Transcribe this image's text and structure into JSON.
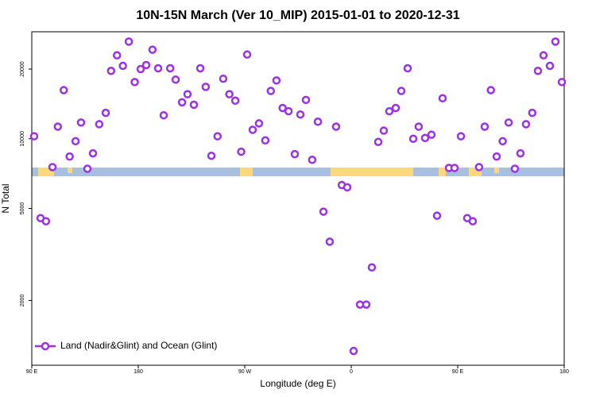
{
  "chart_data": {
    "type": "scatter",
    "title": "10N-15N March (Ver 10_MIP)   2015-01-01 to 2020-12-31",
    "x_label": "Longitude (deg E)",
    "y_label": "N Total",
    "y_log": true,
    "color": "#9b30e6",
    "legend_position": "lower left",
    "xlim": [
      90,
      540
    ],
    "ylim": [
      1050,
      29000
    ],
    "xticks": [
      {
        "value": 90,
        "label": "90 E"
      },
      {
        "value": 180,
        "label": "180"
      },
      {
        "value": 270,
        "label": "90 W"
      },
      {
        "value": 360,
        "label": "0"
      },
      {
        "value": 450,
        "label": "90 E"
      },
      {
        "value": 540,
        "label": "180"
      }
    ],
    "yticks": [
      2000,
      5000,
      10000,
      20000
    ],
    "series": [
      {
        "name": "Land (Nadir&Glint) and Ocean (Glint)",
        "color": "#9b30e6",
        "x": [
          92,
          97.4,
          102,
          107.5,
          112,
          117,
          122,
          127,
          131.6,
          137,
          141.7,
          147,
          152.5,
          157,
          162,
          167,
          172,
          177,
          182,
          186.7,
          192,
          196.8,
          201.5,
          207,
          211.6,
          217,
          221.6,
          227,
          232.4,
          237,
          241.8,
          247,
          251.8,
          257,
          262,
          267,
          272,
          276.7,
          282,
          287.4,
          292,
          296.8,
          302,
          307,
          312.3,
          317,
          321.7,
          327,
          331.8,
          336.5,
          341.8,
          347.2,
          352,
          356.6,
          362,
          367.4,
          372.7,
          377.4,
          382.8,
          387.5,
          392.2,
          397.6,
          402.3,
          407.7,
          412.4,
          417,
          422.4,
          427.8,
          432.5,
          437.2,
          442.6,
          447.3,
          452.7,
          458,
          462.7,
          468,
          472.8,
          478,
          482.9,
          488,
          493,
          498.3,
          503,
          507.7,
          513,
          517.8,
          522.5,
          527.9,
          532.6,
          538
        ],
        "values": [
          10250,
          4540,
          4400,
          7540,
          11280,
          16220,
          8380,
          9760,
          11750,
          7420,
          8650,
          11560,
          12940,
          19650,
          22940,
          20660,
          26300,
          17580,
          20000,
          20820,
          24260,
          20160,
          12630,
          20160,
          18010,
          14370,
          15580,
          14030,
          20160,
          16760,
          8440,
          10250,
          18170,
          15580,
          14610,
          8790,
          23120,
          10930,
          11650,
          9840,
          16090,
          17860,
          13580,
          13150,
          8580,
          12730,
          14720,
          8110,
          11850,
          4840,
          3590,
          11280,
          6310,
          6170,
          1210,
          1920,
          1920,
          2780,
          9690,
          10840,
          13150,
          13580,
          16090,
          20160,
          10000,
          11280,
          10080,
          10410,
          4650,
          14960,
          7480,
          7480,
          10250,
          4540,
          4400,
          7540,
          11280,
          16220,
          8380,
          9760,
          11750,
          7420,
          8650,
          11560,
          12940,
          19650,
          22940,
          20660,
          26300,
          17580
        ]
      }
    ]
  }
}
